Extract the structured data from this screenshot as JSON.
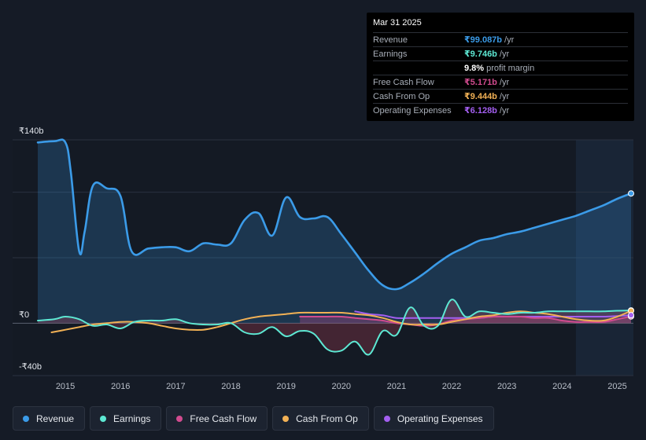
{
  "chart_data": {
    "type": "area",
    "currency": "₹",
    "y_unit": "b",
    "y_ticks": [
      {
        "value": 140,
        "label": "₹140b"
      },
      {
        "value": 0,
        "label": "₹0"
      },
      {
        "value": -40,
        "label": "-₹40b"
      }
    ],
    "x_ticks": [
      "2015",
      "2016",
      "2017",
      "2018",
      "2019",
      "2020",
      "2021",
      "2022",
      "2023",
      "2024",
      "2025"
    ],
    "x_range": [
      2014.5,
      2025.25
    ],
    "y_range": [
      -40,
      140
    ],
    "forecast_shade_start": 2024.25,
    "series": [
      {
        "name": "Revenue",
        "color": "#3b9be8",
        "fill": true,
        "points": [
          [
            2014.5,
            138
          ],
          [
            2014.8,
            139
          ],
          [
            2015.0,
            138
          ],
          [
            2015.1,
            115
          ],
          [
            2015.25,
            55
          ],
          [
            2015.35,
            70
          ],
          [
            2015.5,
            105
          ],
          [
            2015.75,
            103
          ],
          [
            2016.0,
            97
          ],
          [
            2016.2,
            55
          ],
          [
            2016.5,
            57
          ],
          [
            2016.75,
            58
          ],
          [
            2017.0,
            58
          ],
          [
            2017.25,
            55
          ],
          [
            2017.5,
            61
          ],
          [
            2017.75,
            60
          ],
          [
            2018.0,
            61
          ],
          [
            2018.25,
            79
          ],
          [
            2018.5,
            84
          ],
          [
            2018.75,
            67
          ],
          [
            2019.0,
            96
          ],
          [
            2019.25,
            81
          ],
          [
            2019.5,
            80
          ],
          [
            2019.75,
            81
          ],
          [
            2020.0,
            68
          ],
          [
            2020.25,
            54
          ],
          [
            2020.5,
            40
          ],
          [
            2020.75,
            29
          ],
          [
            2021.0,
            26
          ],
          [
            2021.25,
            31
          ],
          [
            2021.5,
            38
          ],
          [
            2021.75,
            46
          ],
          [
            2022.0,
            53
          ],
          [
            2022.25,
            58
          ],
          [
            2022.5,
            63
          ],
          [
            2022.75,
            65
          ],
          [
            2023.0,
            68
          ],
          [
            2023.25,
            70
          ],
          [
            2023.5,
            73
          ],
          [
            2023.75,
            76
          ],
          [
            2024.0,
            79
          ],
          [
            2024.25,
            82
          ],
          [
            2024.5,
            86
          ],
          [
            2024.75,
            90
          ],
          [
            2025.0,
            95
          ],
          [
            2025.25,
            99.087
          ]
        ]
      },
      {
        "name": "Earnings",
        "color": "#5de8d3",
        "fill": false,
        "points": [
          [
            2014.5,
            2
          ],
          [
            2014.8,
            3
          ],
          [
            2015.0,
            5
          ],
          [
            2015.25,
            3
          ],
          [
            2015.5,
            -2
          ],
          [
            2015.75,
            -1
          ],
          [
            2016.0,
            -4
          ],
          [
            2016.25,
            1
          ],
          [
            2016.5,
            2
          ],
          [
            2016.75,
            2
          ],
          [
            2017.0,
            3
          ],
          [
            2017.25,
            0
          ],
          [
            2017.5,
            -1
          ],
          [
            2017.75,
            -1
          ],
          [
            2018.0,
            0
          ],
          [
            2018.25,
            -7
          ],
          [
            2018.5,
            -8
          ],
          [
            2018.75,
            -3
          ],
          [
            2019.0,
            -10
          ],
          [
            2019.25,
            -6
          ],
          [
            2019.5,
            -8
          ],
          [
            2019.75,
            -20
          ],
          [
            2020.0,
            -21
          ],
          [
            2020.25,
            -14
          ],
          [
            2020.5,
            -24
          ],
          [
            2020.75,
            -6
          ],
          [
            2021.0,
            -9
          ],
          [
            2021.25,
            12
          ],
          [
            2021.5,
            -2
          ],
          [
            2021.75,
            -2
          ],
          [
            2022.0,
            18
          ],
          [
            2022.25,
            5
          ],
          [
            2022.5,
            9
          ],
          [
            2022.75,
            8
          ],
          [
            2023.0,
            7
          ],
          [
            2023.25,
            8
          ],
          [
            2023.5,
            8
          ],
          [
            2023.75,
            9
          ],
          [
            2024.0,
            9
          ],
          [
            2024.25,
            9
          ],
          [
            2024.5,
            9
          ],
          [
            2024.75,
            9
          ],
          [
            2025.0,
            9.5
          ],
          [
            2025.25,
            9.746
          ]
        ]
      },
      {
        "name": "Free Cash Flow",
        "color": "#d14b8f",
        "fill": true,
        "points": [
          [
            2019.25,
            5
          ],
          [
            2019.5,
            5
          ],
          [
            2019.75,
            5
          ],
          [
            2020.0,
            5
          ],
          [
            2020.25,
            4
          ],
          [
            2020.5,
            3
          ],
          [
            2020.75,
            2
          ],
          [
            2021.0,
            0
          ],
          [
            2021.25,
            -1
          ],
          [
            2021.5,
            -2
          ],
          [
            2021.75,
            -1
          ],
          [
            2022.0,
            2
          ],
          [
            2022.25,
            3
          ],
          [
            2022.5,
            4
          ],
          [
            2022.75,
            5
          ],
          [
            2023.0,
            5
          ],
          [
            2023.25,
            5
          ],
          [
            2023.5,
            4
          ],
          [
            2023.75,
            4
          ],
          [
            2024.0,
            2
          ],
          [
            2024.25,
            1
          ],
          [
            2024.5,
            1
          ],
          [
            2024.75,
            1
          ],
          [
            2025.0,
            3
          ],
          [
            2025.25,
            5.171
          ]
        ]
      },
      {
        "name": "Cash From Op",
        "color": "#f2b155",
        "fill": false,
        "points": [
          [
            2014.75,
            -7
          ],
          [
            2015.0,
            -5
          ],
          [
            2015.25,
            -3
          ],
          [
            2015.5,
            -1
          ],
          [
            2015.75,
            0
          ],
          [
            2016.0,
            1
          ],
          [
            2016.25,
            1
          ],
          [
            2016.5,
            0
          ],
          [
            2016.75,
            -2
          ],
          [
            2017.0,
            -4
          ],
          [
            2017.25,
            -5
          ],
          [
            2017.5,
            -5
          ],
          [
            2017.75,
            -3
          ],
          [
            2018.0,
            0
          ],
          [
            2018.25,
            3
          ],
          [
            2018.5,
            5
          ],
          [
            2018.75,
            6
          ],
          [
            2019.0,
            7
          ],
          [
            2019.25,
            8
          ],
          [
            2019.5,
            8
          ],
          [
            2019.75,
            8
          ],
          [
            2020.0,
            8
          ],
          [
            2020.25,
            7
          ],
          [
            2020.5,
            6
          ],
          [
            2020.75,
            4
          ],
          [
            2021.0,
            1
          ],
          [
            2021.25,
            -1
          ],
          [
            2021.5,
            -1
          ],
          [
            2021.75,
            -1
          ],
          [
            2022.0,
            1
          ],
          [
            2022.25,
            3
          ],
          [
            2022.5,
            5
          ],
          [
            2022.75,
            6
          ],
          [
            2023.0,
            8
          ],
          [
            2023.25,
            9
          ],
          [
            2023.5,
            8
          ],
          [
            2023.75,
            7
          ],
          [
            2024.0,
            5
          ],
          [
            2024.25,
            3
          ],
          [
            2024.5,
            2
          ],
          [
            2024.75,
            2
          ],
          [
            2025.0,
            5
          ],
          [
            2025.25,
            9.444
          ]
        ]
      },
      {
        "name": "Operating Expenses",
        "color": "#a35ff0",
        "fill": false,
        "points": [
          [
            2020.25,
            9
          ],
          [
            2020.5,
            7
          ],
          [
            2020.75,
            6
          ],
          [
            2021.0,
            4
          ],
          [
            2021.25,
            4
          ],
          [
            2021.5,
            4
          ],
          [
            2021.75,
            4
          ],
          [
            2022.0,
            4
          ],
          [
            2022.25,
            4
          ],
          [
            2022.5,
            4
          ],
          [
            2022.75,
            5
          ],
          [
            2023.0,
            5
          ],
          [
            2023.25,
            5
          ],
          [
            2023.5,
            5
          ],
          [
            2023.75,
            5
          ],
          [
            2024.0,
            5
          ],
          [
            2024.25,
            5
          ],
          [
            2024.5,
            5
          ],
          [
            2024.75,
            5
          ],
          [
            2025.0,
            5.5
          ],
          [
            2025.25,
            6.128
          ]
        ]
      }
    ]
  },
  "tooltip": {
    "date": "Mar 31 2025",
    "rows": [
      {
        "label": "Revenue",
        "value": "₹99.087b",
        "unit": "/yr",
        "color": "#3b9be8"
      },
      {
        "label": "Earnings",
        "value": "₹9.746b",
        "unit": "/yr",
        "color": "#5de8d3"
      },
      {
        "label": "",
        "value": "9.8%",
        "unit": "profit margin",
        "color": "#ffffff"
      },
      {
        "label": "Free Cash Flow",
        "value": "₹5.171b",
        "unit": "/yr",
        "color": "#d14b8f"
      },
      {
        "label": "Cash From Op",
        "value": "₹9.444b",
        "unit": "/yr",
        "color": "#f2b155"
      },
      {
        "label": "Operating Expenses",
        "value": "₹6.128b",
        "unit": "/yr",
        "color": "#a35ff0"
      }
    ]
  },
  "legend": [
    {
      "label": "Revenue",
      "color": "#3b9be8"
    },
    {
      "label": "Earnings",
      "color": "#5de8d3"
    },
    {
      "label": "Free Cash Flow",
      "color": "#d14b8f"
    },
    {
      "label": "Cash From Op",
      "color": "#f2b155"
    },
    {
      "label": "Operating Expenses",
      "color": "#a35ff0"
    }
  ]
}
